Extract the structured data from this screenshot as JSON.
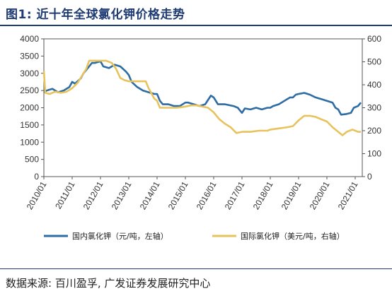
{
  "title": "图1:  近十年全球氯化钾价格走势",
  "source": "数据来源:  百川盈孚,  广发证券发展研究中心",
  "chart_data": {
    "type": "line",
    "x_labels": [
      "2010/01",
      "2011/01",
      "2012/01",
      "2013/01",
      "2014/01",
      "2015/01",
      "2016/01",
      "2017/01",
      "2018/01",
      "2019/01",
      "2020/01",
      "2021/01"
    ],
    "x_start": 2010.0,
    "x_end": 2021.25,
    "ylim_left": [
      0,
      4000
    ],
    "yticks_left": [
      0,
      500,
      1000,
      1500,
      2000,
      2500,
      3000,
      3500,
      4000
    ],
    "ylim_right": [
      0,
      600
    ],
    "yticks_right": [
      0,
      100,
      200,
      300,
      400,
      500,
      600
    ],
    "grid": false,
    "legend_position": "bottom",
    "series": [
      {
        "name": "国内氯化钾（元/吨，左轴）",
        "axis": "left",
        "color": "#2e6ca4",
        "points": [
          [
            2010.0,
            2450
          ],
          [
            2010.1,
            2500
          ],
          [
            2010.3,
            2550
          ],
          [
            2010.5,
            2450
          ],
          [
            2010.7,
            2500
          ],
          [
            2010.9,
            2600
          ],
          [
            2011.0,
            2750
          ],
          [
            2011.1,
            2700
          ],
          [
            2011.3,
            2850
          ],
          [
            2011.4,
            3000
          ],
          [
            2011.55,
            3150
          ],
          [
            2011.7,
            3300
          ],
          [
            2011.8,
            3300
          ],
          [
            2012.0,
            3350
          ],
          [
            2012.1,
            3200
          ],
          [
            2012.3,
            3150
          ],
          [
            2012.5,
            3250
          ],
          [
            2012.7,
            3200
          ],
          [
            2012.9,
            3050
          ],
          [
            2013.0,
            2950
          ],
          [
            2013.1,
            2750
          ],
          [
            2013.3,
            2600
          ],
          [
            2013.5,
            2500
          ],
          [
            2013.7,
            2450
          ],
          [
            2013.9,
            2400
          ],
          [
            2014.0,
            2400
          ],
          [
            2014.1,
            2200
          ],
          [
            2014.2,
            2100
          ],
          [
            2014.4,
            2100
          ],
          [
            2014.6,
            2050
          ],
          [
            2014.8,
            2050
          ],
          [
            2015.0,
            2150
          ],
          [
            2015.1,
            2150
          ],
          [
            2015.3,
            2100
          ],
          [
            2015.5,
            2050
          ],
          [
            2015.7,
            2100
          ],
          [
            2015.9,
            2350
          ],
          [
            2016.0,
            2300
          ],
          [
            2016.15,
            2100
          ],
          [
            2016.4,
            2100
          ],
          [
            2016.7,
            2050
          ],
          [
            2016.85,
            2000
          ],
          [
            2017.0,
            1850
          ],
          [
            2017.1,
            1980
          ],
          [
            2017.3,
            1950
          ],
          [
            2017.5,
            2000
          ],
          [
            2017.7,
            1950
          ],
          [
            2017.9,
            2000
          ],
          [
            2018.0,
            2000
          ],
          [
            2018.1,
            2050
          ],
          [
            2018.3,
            2100
          ],
          [
            2018.5,
            2200
          ],
          [
            2018.7,
            2300
          ],
          [
            2018.8,
            2300
          ],
          [
            2018.9,
            2380
          ],
          [
            2019.0,
            2400
          ],
          [
            2019.2,
            2430
          ],
          [
            2019.4,
            2380
          ],
          [
            2019.6,
            2300
          ],
          [
            2019.8,
            2250
          ],
          [
            2020.0,
            2200
          ],
          [
            2020.2,
            2150
          ],
          [
            2020.3,
            2000
          ],
          [
            2020.4,
            1950
          ],
          [
            2020.5,
            1800
          ],
          [
            2020.7,
            1820
          ],
          [
            2020.85,
            1850
          ],
          [
            2020.95,
            2000
          ],
          [
            2021.1,
            2050
          ],
          [
            2021.2,
            2150
          ]
        ]
      },
      {
        "name": "国际氯化钾（美元/吨，右轴）",
        "axis": "right",
        "color": "#e6c35c",
        "points": [
          [
            2010.0,
            460
          ],
          [
            2010.05,
            365
          ],
          [
            2010.2,
            360
          ],
          [
            2010.4,
            370
          ],
          [
            2010.6,
            365
          ],
          [
            2010.8,
            370
          ],
          [
            2011.0,
            385
          ],
          [
            2011.2,
            410
          ],
          [
            2011.35,
            440
          ],
          [
            2011.5,
            470
          ],
          [
            2011.6,
            505
          ],
          [
            2011.9,
            505
          ],
          [
            2012.2,
            505
          ],
          [
            2012.4,
            495
          ],
          [
            2012.55,
            470
          ],
          [
            2012.7,
            430
          ],
          [
            2012.85,
            420
          ],
          [
            2013.0,
            415
          ],
          [
            2013.4,
            415
          ],
          [
            2013.6,
            415
          ],
          [
            2013.7,
            385
          ],
          [
            2013.9,
            340
          ],
          [
            2014.0,
            330
          ],
          [
            2014.1,
            300
          ],
          [
            2014.4,
            300
          ],
          [
            2014.7,
            300
          ],
          [
            2015.0,
            305
          ],
          [
            2015.2,
            310
          ],
          [
            2015.4,
            310
          ],
          [
            2015.6,
            305
          ],
          [
            2015.8,
            300
          ],
          [
            2016.0,
            280
          ],
          [
            2016.2,
            250
          ],
          [
            2016.4,
            230
          ],
          [
            2016.6,
            215
          ],
          [
            2016.8,
            190
          ],
          [
            2017.0,
            195
          ],
          [
            2017.3,
            195
          ],
          [
            2017.6,
            200
          ],
          [
            2017.9,
            200
          ],
          [
            2018.0,
            205
          ],
          [
            2018.3,
            210
          ],
          [
            2018.6,
            215
          ],
          [
            2018.8,
            220
          ],
          [
            2019.0,
            245
          ],
          [
            2019.2,
            265
          ],
          [
            2019.4,
            265
          ],
          [
            2019.6,
            260
          ],
          [
            2019.8,
            250
          ],
          [
            2020.0,
            240
          ],
          [
            2020.2,
            215
          ],
          [
            2020.4,
            195
          ],
          [
            2020.55,
            180
          ],
          [
            2020.7,
            195
          ],
          [
            2020.9,
            205
          ],
          [
            2021.1,
            195
          ],
          [
            2021.2,
            195
          ]
        ]
      }
    ]
  }
}
